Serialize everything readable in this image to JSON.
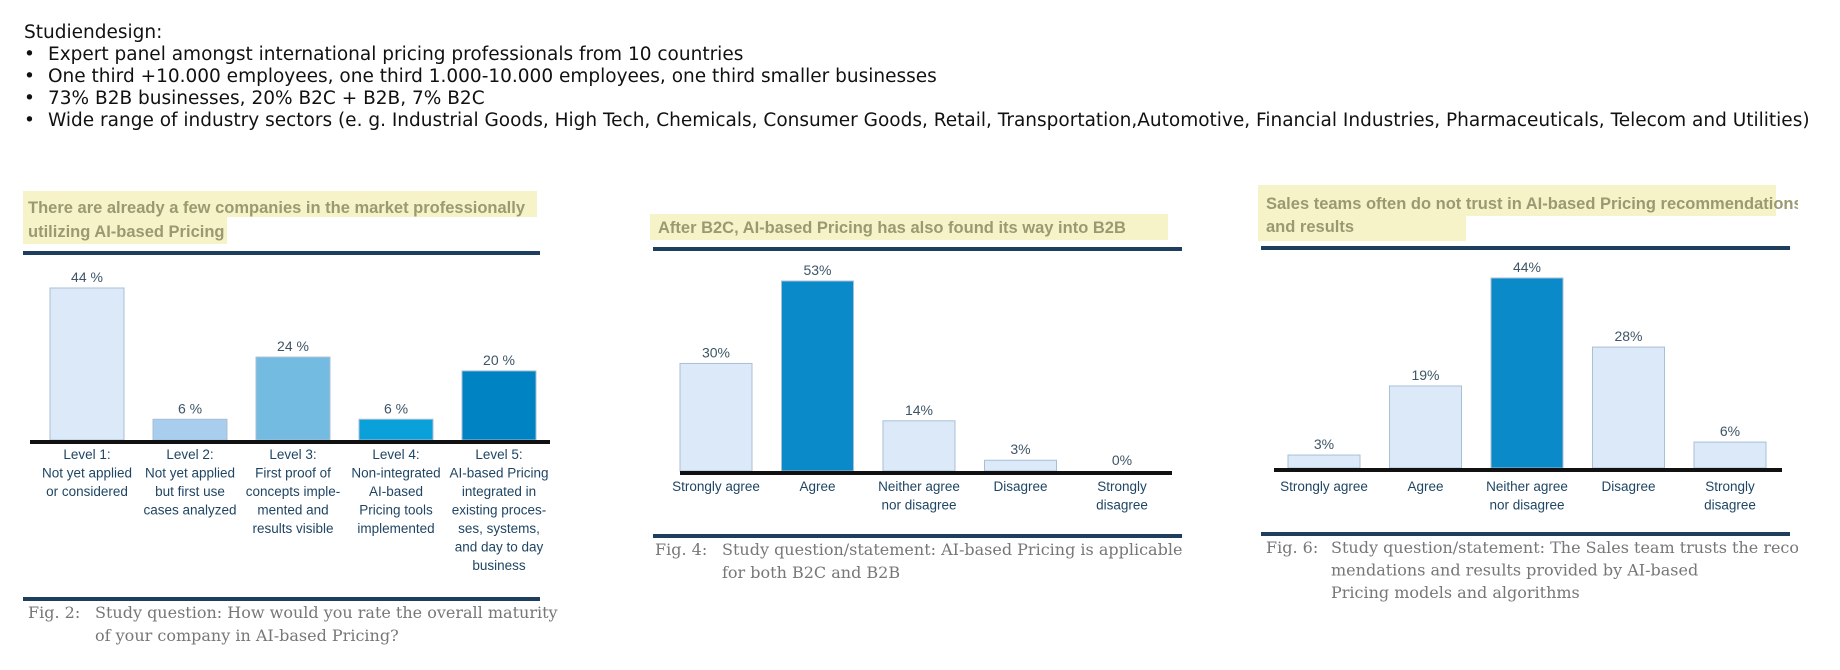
{
  "intro": {
    "heading": "Studiendesign:",
    "bullets": [
      "Expert panel amongst international pricing professionals from 10 countries",
      "One third +10.000 employees, one third 1.000-10.000 employees, one third smaller businesses",
      "73% B2B businesses, 20% B2C + B2B, 7% B2C",
      "Wide range of industry sectors (e. g. Industrial Goods, High Tech, Chemicals, Consumer Goods, Retail, Transportation,Automotive, Financial Industries, Pharmaceuticals, Telecom and Utilities)"
    ]
  },
  "chart_data": [
    {
      "type": "bar",
      "title_lines": [
        "There are already a few companies in the market professionally",
        "utilizing AI-based Pricing"
      ],
      "categories": [
        [
          "Level 1:",
          "Not yet applied",
          "or considered"
        ],
        [
          "Level 2:",
          "Not yet applied",
          "but first use",
          "cases analyzed"
        ],
        [
          "Level 3:",
          "First proof of",
          "concepts imple-",
          "mented and",
          "results visible"
        ],
        [
          "Level 4:",
          "Non-integrated",
          "AI-based",
          "Pricing tools",
          "implemented"
        ],
        [
          "Level 5:",
          "AI-based Pricing",
          "integrated in",
          "existing proces-",
          "ses, systems,",
          "and day to day",
          "business"
        ]
      ],
      "values": [
        44,
        6,
        24,
        6,
        20
      ],
      "value_labels": [
        "44 %",
        "6 %",
        "24 %",
        "6 %",
        "20 %"
      ],
      "colors": [
        "#dbe9f8",
        "#a9cdec",
        "#74bbe2",
        "#0aa0da",
        "#0083c3"
      ],
      "caption_label": "Fig. 2:",
      "caption_lines": [
        "Study question: How would you rate the overall maturity",
        "of your company in AI-based Pricing?"
      ]
    },
    {
      "type": "bar",
      "title_lines": [
        "After B2C, AI-based Pricing has also found its way into B2B"
      ],
      "categories": [
        [
          "Strongly agree"
        ],
        [
          "Agree"
        ],
        [
          "Neither agree",
          "nor disagree"
        ],
        [
          "Disagree"
        ],
        [
          "Strongly",
          "disagree"
        ]
      ],
      "values": [
        30,
        53,
        14,
        3,
        0
      ],
      "value_labels": [
        "30%",
        "53%",
        "14%",
        "3%",
        "0%"
      ],
      "colors": [
        "#dbe9f8",
        "#0a8ac8",
        "#dbe9f8",
        "#dbe9f8",
        "#dbe9f8"
      ],
      "caption_label": "Fig. 4:",
      "caption_lines": [
        "Study question/statement: AI-based Pricing is applicable",
        "for both B2C and B2B"
      ]
    },
    {
      "type": "bar",
      "title_lines": [
        "Sales teams often do not trust in AI-based Pricing recommendations",
        "and results"
      ],
      "categories": [
        [
          "Strongly agree"
        ],
        [
          "Agree"
        ],
        [
          "Neither agree",
          "nor disagree"
        ],
        [
          "Disagree"
        ],
        [
          "Strongly",
          "disagree"
        ]
      ],
      "values": [
        3,
        19,
        44,
        28,
        6
      ],
      "value_labels": [
        "3%",
        "19%",
        "44%",
        "28%",
        "6%"
      ],
      "colors": [
        "#dbe9f8",
        "#dbe9f8",
        "#0a8ac8",
        "#dbe9f8",
        "#dbe9f8"
      ],
      "caption_label": "Fig. 6:",
      "caption_lines": [
        "Study question/statement: The Sales team trusts the recom-",
        "mendations and results provided by AI-based",
        "Pricing models and algorithms"
      ]
    }
  ]
}
